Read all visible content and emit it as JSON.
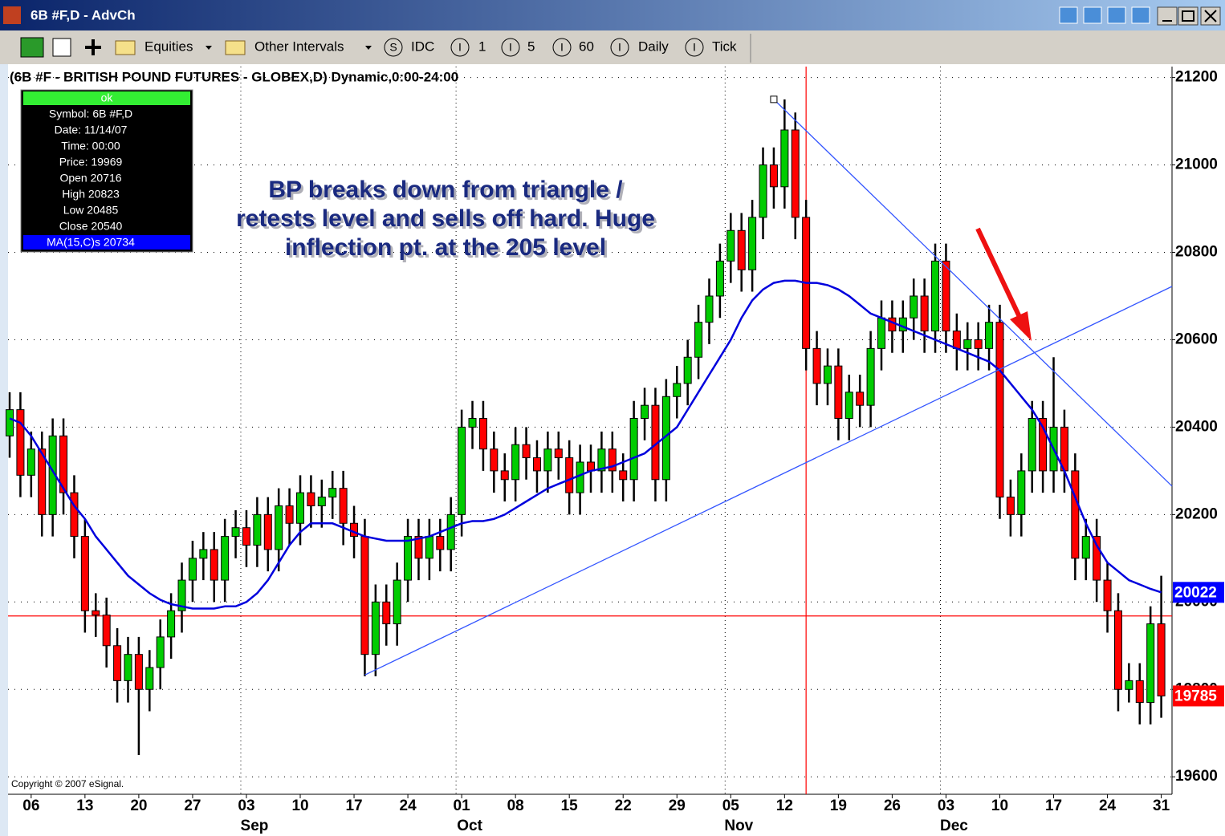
{
  "window": {
    "title": "6B #F,D - AdvCh"
  },
  "toolbar": [
    {
      "label": "Equities"
    },
    {
      "label": "Other Intervals"
    },
    {
      "icon": "S",
      "label": "IDC"
    },
    {
      "icon": "I",
      "label": "1"
    },
    {
      "icon": "I",
      "label": "5"
    },
    {
      "icon": "I",
      "label": "60"
    },
    {
      "icon": "I",
      "label": "Daily"
    },
    {
      "icon": "I",
      "label": "Tick"
    }
  ],
  "info_box": [
    "ok",
    "Symbol: 6B #F,D",
    "Date: 11/14/07",
    "Time: 00:00",
    "Price: 19969",
    "Open 20716",
    "High 20823",
    "Low 20485",
    "Close 20540",
    "MA(15,C)s 20734"
  ],
  "copyright": "Copyright © 2007 eSignal.",
  "chart_data": {
    "type": "candlestick",
    "title": "(6B #F - BRITISH POUND FUTURES - GLOBEX,D) Dynamic,0:00-24:00",
    "annotation": [
      "BP breaks down from triangle /",
      "retests level and sells off hard. Huge",
      "inflection pt. at the 205 level"
    ],
    "up_color": "#00cc00",
    "down_color": "#ff0000",
    "categories": [
      null,
      null,
      "06",
      null,
      null,
      null,
      null,
      "13",
      null,
      null,
      null,
      null,
      "20",
      null,
      null,
      null,
      null,
      "27",
      null,
      null,
      null,
      null,
      "03",
      null,
      null,
      null,
      null,
      "10",
      null,
      null,
      null,
      null,
      "17",
      null,
      null,
      null,
      null,
      "24",
      null,
      null,
      null,
      null,
      "01",
      null,
      null,
      null,
      null,
      "08",
      null,
      null,
      null,
      null,
      "15",
      null,
      null,
      null,
      null,
      "22",
      null,
      null,
      null,
      null,
      "29",
      null,
      null,
      null,
      null,
      "05",
      null,
      null,
      null,
      null,
      "12",
      null,
      null,
      null,
      null,
      "19",
      null,
      null,
      null,
      null,
      "26",
      null,
      null,
      null,
      null,
      "03",
      null,
      null,
      null,
      null,
      "10",
      null,
      null,
      null,
      null,
      "17",
      null,
      null,
      null,
      null,
      "24",
      null,
      null,
      null,
      null,
      "31"
    ],
    "month_labels": [
      {
        "value": 22,
        "label": "Sep"
      },
      {
        "value": 42,
        "label": "Oct"
      },
      {
        "value": 67,
        "label": "Nov"
      },
      {
        "value": 87,
        "label": "Dec"
      }
    ],
    "open": [
      20380,
      20440,
      20290,
      20350,
      20200,
      20380,
      20250,
      20150,
      19980,
      19970,
      19900,
      19820,
      19880,
      19800,
      19850,
      19920,
      19980,
      20050,
      20100,
      20120,
      20050,
      20150,
      20170,
      20130,
      20200,
      20120,
      20220,
      20180,
      20250,
      20220,
      20240,
      20260,
      20180,
      20150,
      19880,
      20000,
      19950,
      20050,
      20150,
      20100,
      20150,
      20120,
      20200,
      20400,
      20420,
      20350,
      20300,
      20280,
      20360,
      20330,
      20300,
      20350,
      20330,
      20250,
      20320,
      20300,
      20350,
      20300,
      20280,
      20420,
      20450,
      20280,
      20470,
      20500,
      20560,
      20640,
      20700,
      20780,
      20850,
      20760,
      20880,
      21000,
      20950,
      21080,
      20880,
      20580,
      20500,
      20540,
      20420,
      20480,
      20450,
      20580,
      20650,
      20620,
      20650,
      20700,
      20620,
      20780,
      20620,
      20580,
      20600,
      20580,
      20640,
      20240,
      20200,
      20300,
      20420,
      20300,
      20400,
      20300,
      20100,
      20150,
      20050,
      19980,
      19800,
      19820,
      19770,
      19950
    ],
    "high": [
      20480,
      20480,
      20390,
      20390,
      20420,
      20420,
      20290,
      20190,
      20020,
      20010,
      19940,
      19920,
      19920,
      19890,
      19960,
      20020,
      20090,
      20140,
      20160,
      20160,
      20190,
      20210,
      20210,
      20240,
      20240,
      20260,
      20260,
      20290,
      20290,
      20280,
      20300,
      20300,
      20220,
      20190,
      20040,
      20040,
      20090,
      20190,
      20190,
      20190,
      20190,
      20240,
      20440,
      20460,
      20460,
      20390,
      20340,
      20400,
      20400,
      20370,
      20390,
      20390,
      20370,
      20360,
      20360,
      20390,
      20390,
      20340,
      20460,
      20490,
      20490,
      20510,
      20540,
      20600,
      20680,
      20740,
      20820,
      20890,
      20890,
      20920,
      21040,
      21040,
      21150,
      21120,
      20920,
      20620,
      20580,
      20580,
      20520,
      20520,
      20620,
      20690,
      20690,
      20690,
      20740,
      20740,
      20820,
      20820,
      20660,
      20640,
      20640,
      20680,
      20680,
      20280,
      20340,
      20460,
      20460,
      20560,
      20440,
      20340,
      20190,
      20190,
      20090,
      20020,
      19860,
      19860,
      19990,
      20060
    ],
    "low": [
      20330,
      20240,
      20240,
      20150,
      20150,
      20200,
      20100,
      19930,
      19920,
      19850,
      19770,
      19770,
      19650,
      19750,
      19800,
      19870,
      19930,
      20000,
      20050,
      20000,
      20000,
      20100,
      20080,
      20080,
      20070,
      20070,
      20130,
      20130,
      20170,
      20170,
      20190,
      20130,
      20100,
      19830,
      19830,
      19900,
      19900,
      20000,
      20050,
      20050,
      20070,
      20070,
      20150,
      20350,
      20300,
      20250,
      20230,
      20230,
      20280,
      20250,
      20250,
      20280,
      20200,
      20200,
      20250,
      20250,
      20250,
      20230,
      20230,
      20370,
      20230,
      20230,
      20420,
      20450,
      20510,
      20590,
      20650,
      20730,
      20710,
      20710,
      20830,
      20900,
      20900,
      20830,
      20530,
      20450,
      20450,
      20370,
      20370,
      20400,
      20400,
      20530,
      20570,
      20570,
      20600,
      20570,
      20570,
      20570,
      20530,
      20530,
      20530,
      20530,
      20190,
      20150,
      20150,
      20250,
      20250,
      20250,
      20250,
      20050,
      20050,
      20000,
      19930,
      19750,
      19770,
      19720,
      19720,
      19735
    ],
    "close": [
      20440,
      20290,
      20350,
      20200,
      20380,
      20250,
      20150,
      19980,
      19970,
      19900,
      19820,
      19880,
      19800,
      19850,
      19920,
      19980,
      20050,
      20100,
      20120,
      20050,
      20150,
      20170,
      20130,
      20200,
      20120,
      20220,
      20180,
      20250,
      20220,
      20240,
      20260,
      20180,
      20150,
      19880,
      20000,
      19950,
      20050,
      20150,
      20100,
      20150,
      20120,
      20200,
      20400,
      20420,
      20350,
      20300,
      20280,
      20360,
      20330,
      20300,
      20350,
      20330,
      20250,
      20320,
      20300,
      20350,
      20300,
      20280,
      20420,
      20450,
      20280,
      20470,
      20500,
      20560,
      20640,
      20700,
      20780,
      20850,
      20760,
      20880,
      21000,
      20950,
      21080,
      20880,
      20580,
      20500,
      20540,
      20420,
      20480,
      20450,
      20580,
      20650,
      20620,
      20650,
      20700,
      20620,
      20780,
      20620,
      20580,
      20600,
      20580,
      20640,
      20240,
      20200,
      20300,
      20420,
      20300,
      20400,
      20300,
      20100,
      20150,
      20050,
      19980,
      19800,
      19820,
      19770,
      19950,
      19785
    ],
    "ma": {
      "color": "#0000dd",
      "values": [
        20420,
        20410,
        20380,
        20340,
        20300,
        20260,
        20220,
        20190,
        20150,
        20120,
        20090,
        20060,
        20040,
        20020,
        20005,
        19995,
        19990,
        19985,
        19985,
        19985,
        19990,
        19990,
        20000,
        20020,
        20050,
        20090,
        20130,
        20160,
        20180,
        20180,
        20180,
        20170,
        20160,
        20150,
        20145,
        20140,
        20140,
        20140,
        20145,
        20150,
        20160,
        20170,
        20180,
        20185,
        20185,
        20190,
        20200,
        20215,
        20230,
        20245,
        20260,
        20270,
        20280,
        20290,
        20300,
        20305,
        20310,
        20320,
        20330,
        20340,
        20360,
        20380,
        20400,
        20440,
        20480,
        20520,
        20560,
        20600,
        20650,
        20690,
        20715,
        20730,
        20735,
        20735,
        20730,
        20730,
        20725,
        20715,
        20700,
        20680,
        20660,
        20650,
        20640,
        20630,
        20620,
        20610,
        20600,
        20590,
        20580,
        20570,
        20560,
        20550,
        20530,
        20500,
        20470,
        20440,
        20400,
        20350,
        20300,
        20240,
        20180,
        20130,
        20090,
        20070,
        20050,
        20040,
        20030,
        20022
      ]
    },
    "trendlines": [
      {
        "from": [
          71,
          21150
        ],
        "to": [
          108,
          20265
        ],
        "color": "#3355ff"
      },
      {
        "from": [
          33,
          19833
        ],
        "to": [
          108,
          20722
        ],
        "color": "#3355ff"
      }
    ],
    "hline": {
      "value": 19968,
      "color": "#ff0000"
    },
    "vline": {
      "index": 74,
      "color": "#ff0000"
    },
    "price_markers": [
      {
        "value": 20022,
        "color": "#0000ff"
      },
      {
        "value": 19785,
        "color": "#ff0000"
      }
    ],
    "xlim": [
      -0.15,
      108
    ],
    "ylim": [
      19560,
      21225
    ],
    "yticks": [
      19600,
      19800,
      20000,
      20200,
      20400,
      20600,
      20800,
      21000,
      21200
    ],
    "grid": true
  }
}
